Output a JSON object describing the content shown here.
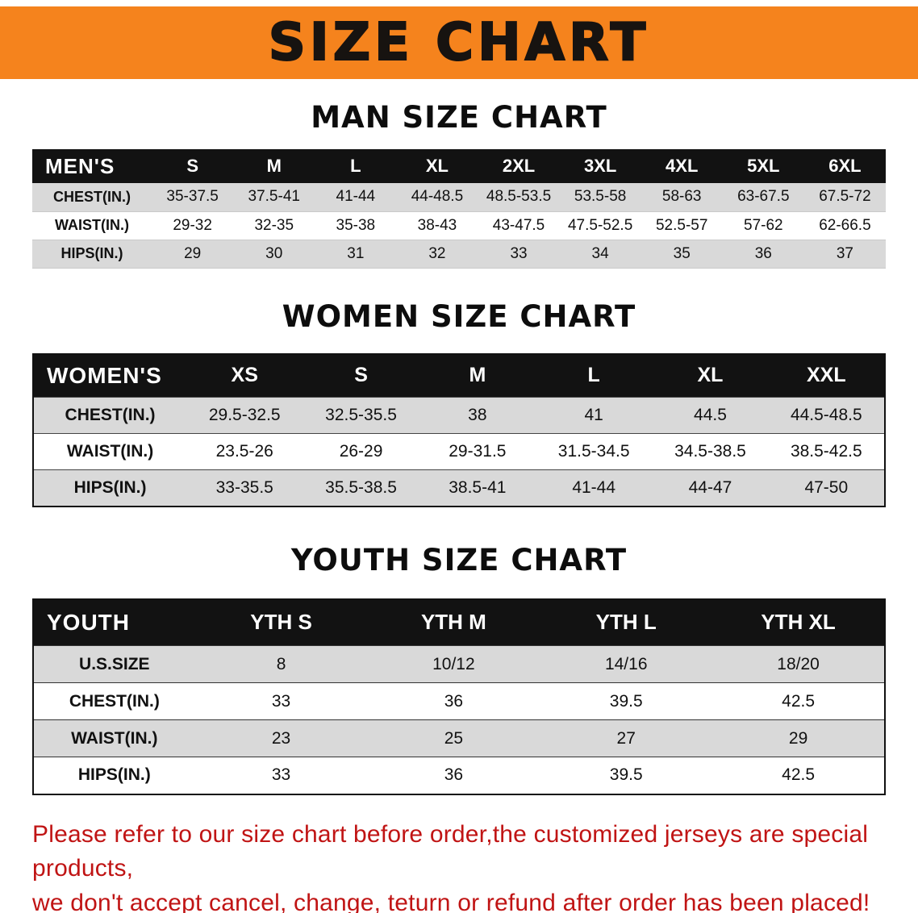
{
  "banner": {
    "title": "SIZE CHART"
  },
  "colors": {
    "banner_bg": "#F5831D",
    "header_bg": "#121212",
    "stripe_gray": "#D9D9D9",
    "notice_red": "#C01414"
  },
  "sections": [
    {
      "id": "men",
      "heading": "MAN SIZE CHART",
      "table": {
        "header": [
          "MEN'S",
          "S",
          "M",
          "L",
          "XL",
          "2XL",
          "3XL",
          "4XL",
          "5XL",
          "6XL"
        ],
        "rows": [
          [
            "CHEST(IN.)",
            "35-37.5",
            "37.5-41",
            "41-44",
            "44-48.5",
            "48.5-53.5",
            "53.5-58",
            "58-63",
            "63-67.5",
            "67.5-72"
          ],
          [
            "WAIST(IN.)",
            "29-32",
            "32-35",
            "35-38",
            "38-43",
            "43-47.5",
            "47.5-52.5",
            "52.5-57",
            "57-62",
            "62-66.5"
          ],
          [
            "HIPS(IN.)",
            "29",
            "30",
            "31",
            "32",
            "33",
            "34",
            "35",
            "36",
            "37"
          ]
        ]
      }
    },
    {
      "id": "women",
      "heading": "WOMEN SIZE CHART",
      "table": {
        "header": [
          "WOMEN'S",
          "XS",
          "S",
          "M",
          "L",
          "XL",
          "XXL"
        ],
        "rows": [
          [
            "CHEST(IN.)",
            "29.5-32.5",
            "32.5-35.5",
            "38",
            "41",
            "44.5",
            "44.5-48.5"
          ],
          [
            "WAIST(IN.)",
            "23.5-26",
            "26-29",
            "29-31.5",
            "31.5-34.5",
            "34.5-38.5",
            "38.5-42.5"
          ],
          [
            "HIPS(IN.)",
            "33-35.5",
            "35.5-38.5",
            "38.5-41",
            "41-44",
            "44-47",
            "47-50"
          ]
        ]
      }
    },
    {
      "id": "youth",
      "heading": "YOUTH SIZE CHART",
      "table": {
        "header": [
          "YOUTH",
          "YTH S",
          "YTH M",
          "YTH L",
          "YTH XL"
        ],
        "rows": [
          [
            "U.S.SIZE",
            "8",
            "10/12",
            "14/16",
            "18/20"
          ],
          [
            "CHEST(IN.)",
            "33",
            "36",
            "39.5",
            "42.5"
          ],
          [
            "WAIST(IN.)",
            "23",
            "25",
            "27",
            "29"
          ],
          [
            "HIPS(IN.)",
            "33",
            "36",
            "39.5",
            "42.5"
          ]
        ]
      }
    }
  ],
  "notice": {
    "line1": "Please refer to our size chart before order,the customized jerseys are special products,",
    "line2": "we don't accept cancel, change, teturn or refund after order has been placed!"
  }
}
